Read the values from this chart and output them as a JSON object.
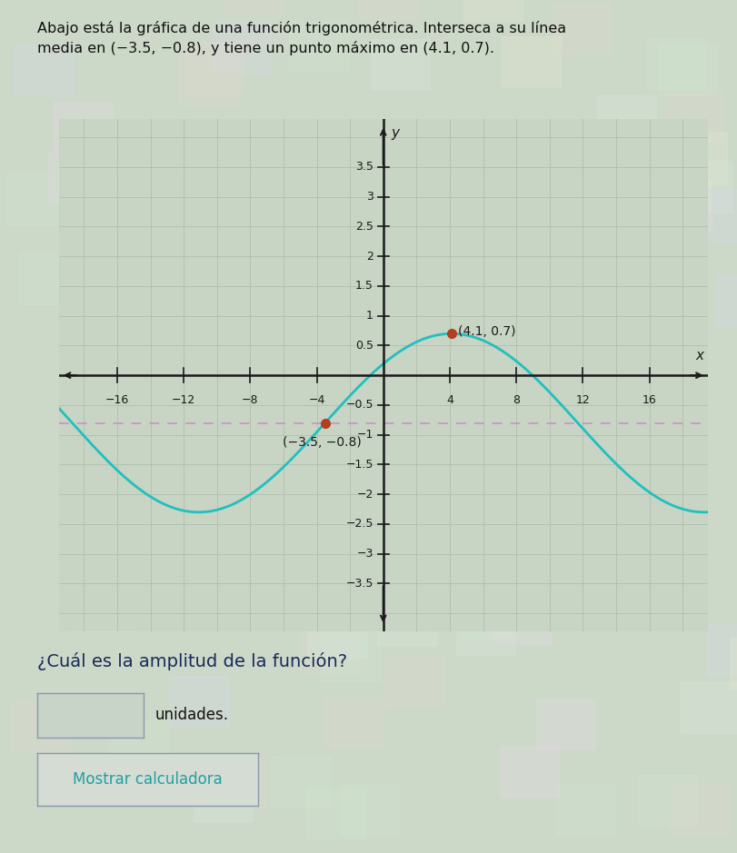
{
  "title_line1": "Abajo está la gráfica de una función trigonométrica. Interseca a su línea",
  "title_line2": "media en (−3.5, −0.8), y tiene un punto máximo en (4.1, 0.7).",
  "question_text": "¿Cuál es la amplitud de la función?",
  "answer_label": "unidades.",
  "button_text": "Mostrar calculadora",
  "midline_crossing_label": "(−3.5, −0.8)",
  "max_point_label": "(4.1, 0.7)",
  "midline_crossing": [
    -3.5,
    -0.8
  ],
  "max_point": [
    4.1,
    0.7
  ],
  "midline_y": -0.8,
  "amplitude": 1.5,
  "period": 30.4,
  "xlim": [
    -19.5,
    19.5
  ],
  "ylim": [
    -4.3,
    4.3
  ],
  "xticks": [
    -16,
    -12,
    -8,
    -4,
    4,
    8,
    12,
    16
  ],
  "yticks": [
    3.5,
    3,
    2.5,
    2,
    1.5,
    1,
    0.5,
    -0.5,
    -1,
    -1.5,
    -2,
    -2.5,
    -3,
    -3.5
  ],
  "curve_color": "#20c0c0",
  "midline_color": "#cc88cc",
  "dot_color": "#b04020",
  "bg_color": "#ccd8c8",
  "plot_bg": "#c8d4c4",
  "grid_color_major": "#aabaa8",
  "grid_color_minor": "#b8c8b4",
  "axis_color": "#1a1a1a",
  "text_color": "#111111",
  "title_color": "#111111",
  "question_color": "#1a2a5a",
  "button_text_color": "#20a0a0",
  "annotation_fontsize": 10,
  "title_fontsize": 11.5,
  "question_fontsize": 14,
  "tick_fontsize": 9
}
